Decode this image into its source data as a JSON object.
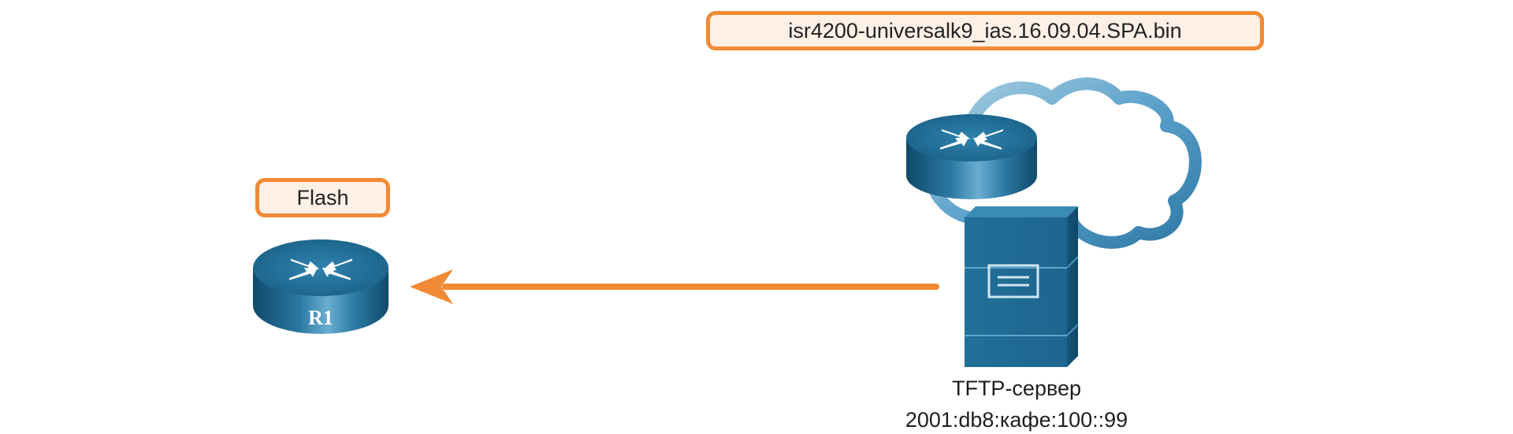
{
  "file_label": "isr4200-universalk9_ias.16.09.04.SPA.bin",
  "flash_label": "Flash",
  "router": {
    "name": "R1",
    "icon": "router-icon"
  },
  "server": {
    "name": "TFTP-сервер",
    "address": "2001:db8:кафе:100::99",
    "icon": "server-icon"
  },
  "remote_router": {
    "icon": "router-icon"
  },
  "cloud": {
    "icon": "cloud-icon"
  },
  "arrow": {
    "direction": "server-to-router",
    "icon": "arrow-left-icon"
  },
  "colors": {
    "accent": "#f08a35",
    "device": "#1f6d96",
    "cloud_outline": "#3a86b0"
  }
}
